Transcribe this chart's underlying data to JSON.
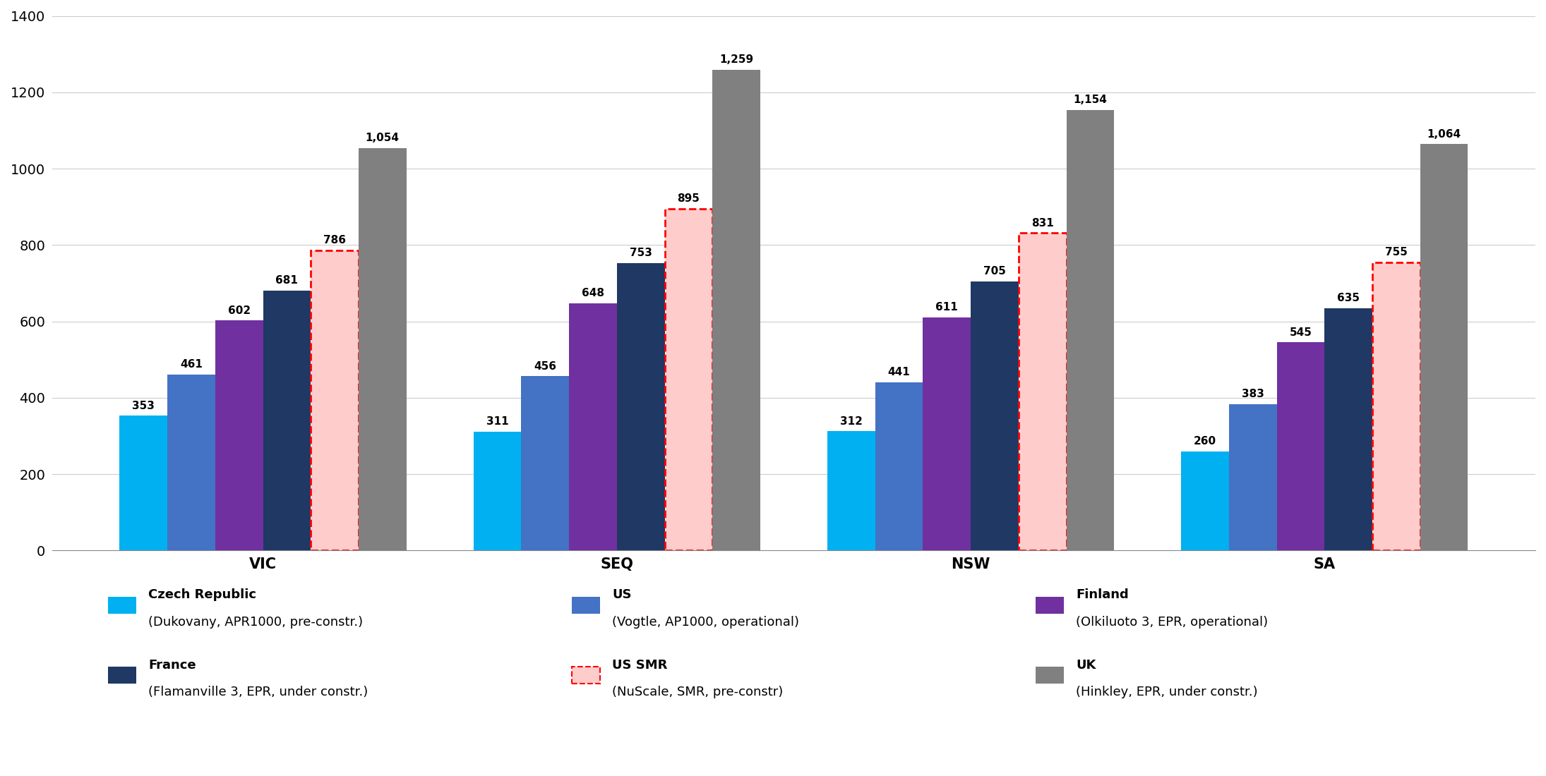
{
  "categories": [
    "VIC",
    "SEQ",
    "NSW",
    "SA"
  ],
  "series": [
    {
      "name_bold": "Czech Republic",
      "name_normal": "(Dukovany, APR1000, pre-constr.)",
      "color": "#00B0F0",
      "values": [
        353,
        311,
        312,
        260
      ],
      "special": false
    },
    {
      "name_bold": "US",
      "name_normal": "(Vogtle, AP1000, operational)",
      "color": "#4472C4",
      "values": [
        461,
        456,
        441,
        383
      ],
      "special": false
    },
    {
      "name_bold": "Finland",
      "name_normal": "(Olkiluoto 3, EPR, operational)",
      "color": "#7030A0",
      "values": [
        602,
        648,
        611,
        545
      ],
      "special": false
    },
    {
      "name_bold": "France",
      "name_normal": "(Flamanville 3, EPR, under constr.)",
      "color": "#1F3864",
      "values": [
        681,
        753,
        705,
        635
      ],
      "special": false
    },
    {
      "name_bold": "US SMR",
      "name_normal": "(NuScale, SMR, pre-constr)",
      "color_fill": "#FFCCCC",
      "color_edge": "#FF0000",
      "values": [
        786,
        895,
        831,
        755
      ],
      "special": true
    },
    {
      "name_bold": "UK",
      "name_normal": "(Hinkley, EPR, under constr.)",
      "color": "#808080",
      "values": [
        1054,
        1259,
        1154,
        1064
      ],
      "special": false
    }
  ],
  "ylim": [
    0,
    1400
  ],
  "yticks": [
    0,
    200,
    400,
    600,
    800,
    1000,
    1200,
    1400
  ],
  "bar_width": 0.135,
  "value_fontsize": 11,
  "cat_fontsize": 15,
  "tick_fontsize": 14,
  "legend_fontsize": 13,
  "bg_color": "#FFFFFF",
  "grid_color": "#CCCCCC"
}
